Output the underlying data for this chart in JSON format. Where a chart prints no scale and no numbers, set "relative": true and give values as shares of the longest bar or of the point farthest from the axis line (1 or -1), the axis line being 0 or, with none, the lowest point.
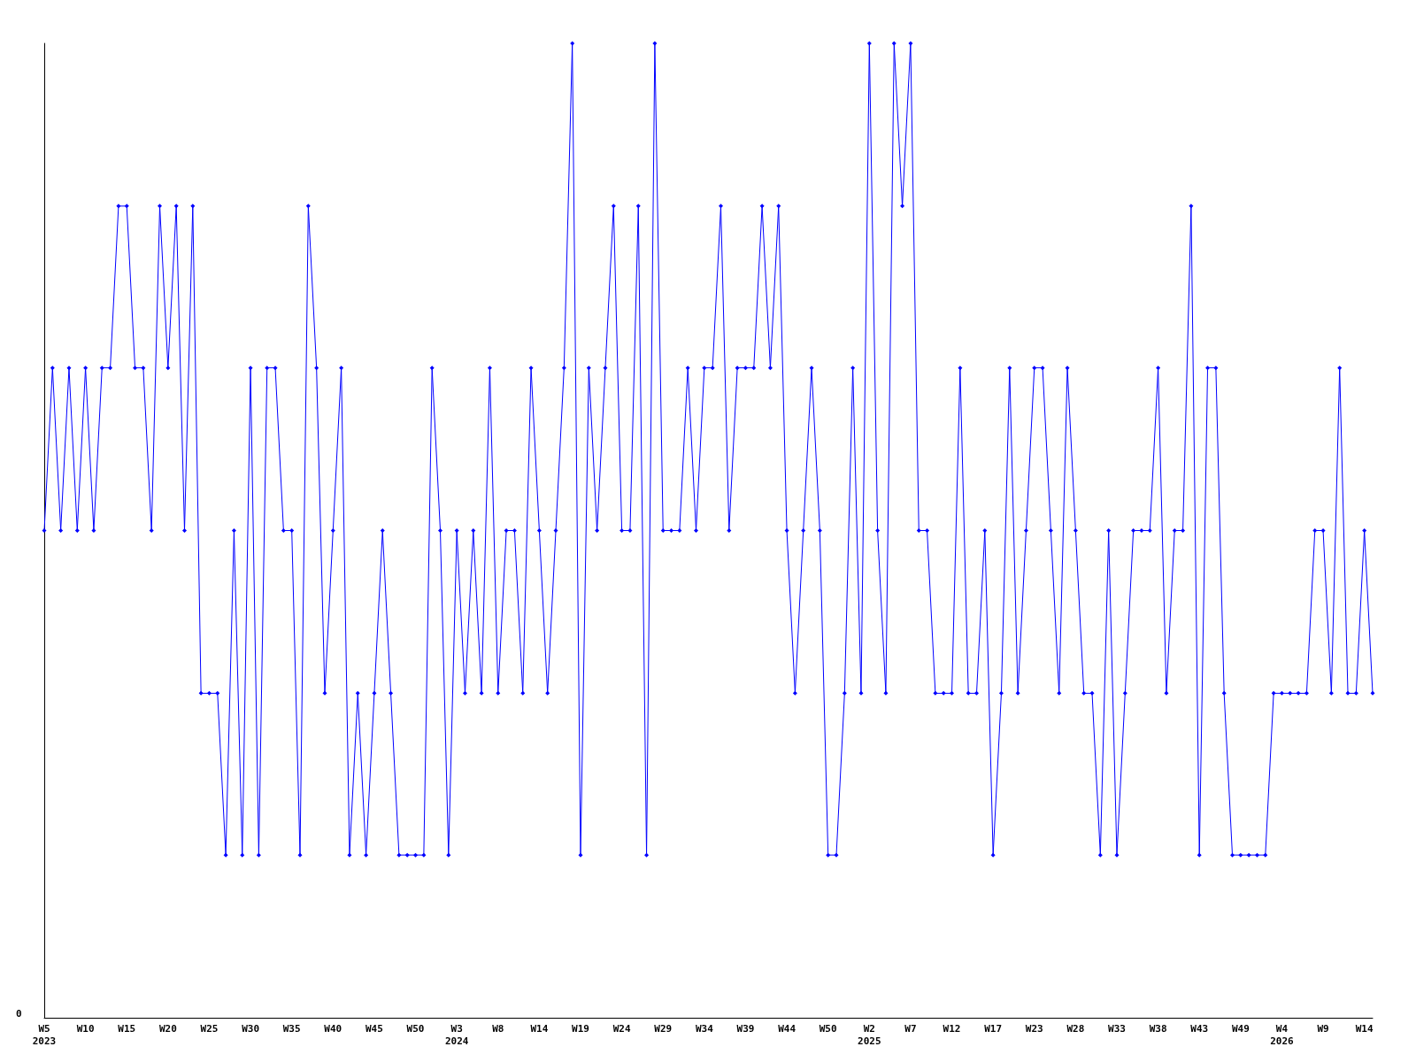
{
  "chart_data": {
    "type": "line",
    "relative": true,
    "marker": "diamond",
    "categories": [
      "W5\n2023",
      null,
      null,
      null,
      null,
      "W10",
      null,
      null,
      null,
      null,
      "W15",
      null,
      null,
      null,
      null,
      "W20",
      null,
      null,
      null,
      null,
      "W25",
      null,
      null,
      null,
      null,
      "W30",
      null,
      null,
      null,
      null,
      "W35",
      null,
      null,
      null,
      null,
      "W40",
      null,
      null,
      null,
      null,
      "W45",
      null,
      null,
      null,
      null,
      "W50",
      null,
      null,
      null,
      null,
      "W3\n2024",
      null,
      null,
      null,
      null,
      "W8",
      null,
      null,
      null,
      null,
      "W14",
      null,
      null,
      null,
      null,
      "W19",
      null,
      null,
      null,
      null,
      "W24",
      null,
      null,
      null,
      null,
      "W29",
      null,
      null,
      null,
      null,
      "W34",
      null,
      null,
      null,
      null,
      "W39",
      null,
      null,
      null,
      null,
      "W44",
      null,
      null,
      null,
      null,
      "W50",
      null,
      null,
      null,
      null,
      "W2\n2025",
      null,
      null,
      null,
      null,
      "W7",
      null,
      null,
      null,
      null,
      "W12",
      null,
      null,
      null,
      null,
      "W17",
      null,
      null,
      null,
      null,
      "W23",
      null,
      null,
      null,
      null,
      "W28",
      null,
      null,
      null,
      null,
      "W33",
      null,
      null,
      null,
      null,
      "W38",
      null,
      null,
      null,
      null,
      "W43",
      null,
      null,
      null,
      null,
      "W49",
      null,
      null,
      null,
      null,
      "W4\n2026",
      null,
      null,
      null,
      null,
      "W9",
      null,
      null,
      null,
      null,
      "W14",
      null
    ],
    "series": [
      {
        "color": "#0000ff",
        "values": [
          0.5,
          0.667,
          0.5,
          0.667,
          0.5,
          0.667,
          0.5,
          0.667,
          0.667,
          0.833,
          0.833,
          0.667,
          0.667,
          0.5,
          0.833,
          0.667,
          0.833,
          0.5,
          0.833,
          0.333,
          0.333,
          0.333,
          0.167,
          0.5,
          0.167,
          0.667,
          0.167,
          0.667,
          0.667,
          0.5,
          0.5,
          0.167,
          0.833,
          0.667,
          0.333,
          0.5,
          0.667,
          0.167,
          0.333,
          0.167,
          0.333,
          0.5,
          0.333,
          0.167,
          0.167,
          0.167,
          0.167,
          0.667,
          0.5,
          0.167,
          0.5,
          0.333,
          0.5,
          0.333,
          0.667,
          0.333,
          0.5,
          0.5,
          0.333,
          0.667,
          0.5,
          0.333,
          0.5,
          0.667,
          1,
          0.167,
          0.667,
          0.5,
          0.667,
          0.833,
          0.5,
          0.5,
          0.833,
          0.167,
          1,
          0.5,
          0.5,
          0.5,
          0.667,
          0.5,
          0.667,
          0.667,
          0.833,
          0.5,
          0.667,
          0.667,
          0.667,
          0.833,
          0.667,
          0.833,
          0.5,
          0.333,
          0.5,
          0.667,
          0.5,
          0.167,
          0.167,
          0.333,
          0.667,
          0.333,
          1,
          0.5,
          0.333,
          1,
          0.833,
          1,
          0.5,
          0.5,
          0.333,
          0.333,
          0.333,
          0.667,
          0.333,
          0.333,
          0.5,
          0.167,
          0.333,
          0.667,
          0.333,
          0.5,
          0.667,
          0.667,
          0.5,
          0.333,
          0.667,
          0.5,
          0.333,
          0.333,
          0.167,
          0.5,
          0.167,
          0.333,
          0.5,
          0.5,
          0.5,
          0.667,
          0.333,
          0.5,
          0.5,
          0.833,
          0.167,
          0.667,
          0.667,
          0.333,
          0.167,
          0.167,
          0.167,
          0.167,
          0.167,
          0.333,
          0.333,
          0.333,
          0.333,
          0.333,
          0.5,
          0.5,
          0.333,
          0.667,
          0.333,
          0.333,
          0.5,
          0.333
        ]
      }
    ],
    "annotations": [
      "0"
    ]
  }
}
